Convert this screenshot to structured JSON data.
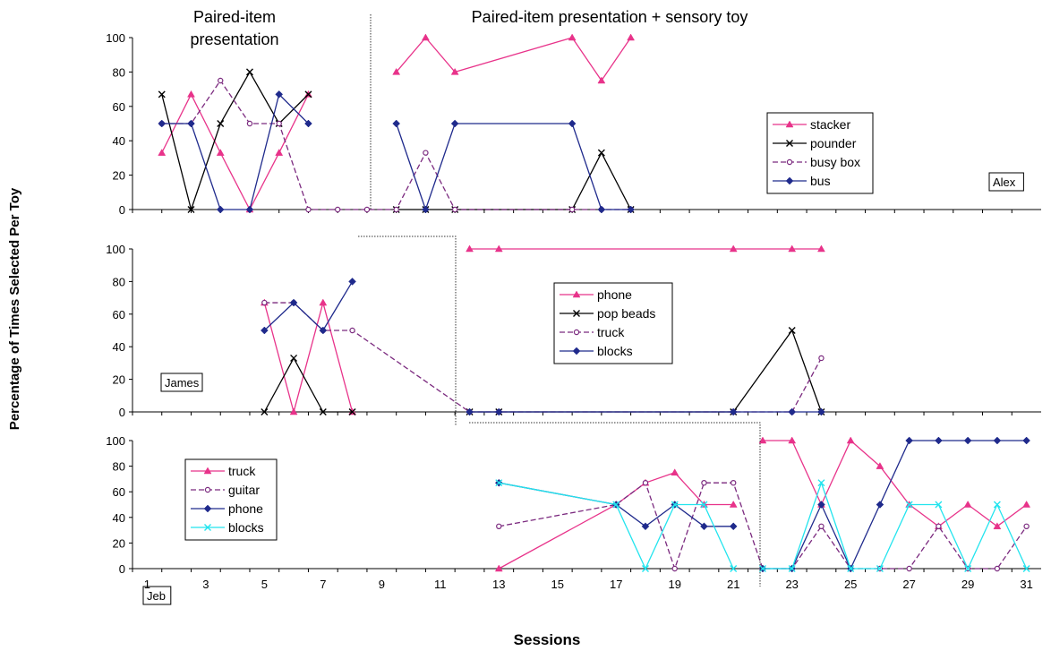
{
  "phase_labels": {
    "baseline": [
      "Paired-item",
      "presentation"
    ],
    "treatment": "Paired-item presentation + sensory toy"
  },
  "chart_data": {
    "type": "line",
    "xlabel": "Sessions",
    "ylabel": "Percentage of Times Selected Per Toy",
    "x_ticks": [
      1,
      3,
      5,
      7,
      9,
      11,
      13,
      15,
      17,
      19,
      21,
      23,
      25,
      27,
      29,
      31
    ],
    "xlim": [
      0.5,
      31.5
    ],
    "ylim": [
      0,
      100
    ],
    "y_ticks": [
      0,
      20,
      40,
      60,
      80,
      100
    ],
    "colors": {
      "pink": "#e8338a",
      "black": "#000000",
      "purple": "#7b2a7f",
      "navy": "#1f2a8c",
      "cyan": "#22e4ee"
    },
    "panels": [
      {
        "participant": "Alex",
        "phase_change_after": 8.5,
        "series": [
          {
            "name": "stacker",
            "color": "#e8338a",
            "marker": "triangle",
            "dash": false,
            "segments": [
              [
                [
                  1.5,
                  33
                ],
                [
                  2.5,
                  67
                ],
                [
                  3.5,
                  33
                ],
                [
                  4.5,
                  0
                ],
                [
                  5.5,
                  33
                ],
                [
                  6.5,
                  67
                ]
              ],
              [
                [
                  9.5,
                  80
                ],
                [
                  10.5,
                  100
                ],
                [
                  11.5,
                  80
                ],
                [
                  15.5,
                  100
                ],
                [
                  16.5,
                  75
                ],
                [
                  17.5,
                  100
                ]
              ]
            ]
          },
          {
            "name": "pounder",
            "color": "#000000",
            "marker": "x",
            "dash": false,
            "segments": [
              [
                [
                  1.5,
                  67
                ],
                [
                  2.5,
                  0
                ],
                [
                  3.5,
                  50
                ],
                [
                  4.5,
                  80
                ],
                [
                  5.5,
                  50
                ],
                [
                  6.5,
                  67
                ]
              ],
              [
                [
                  9.5,
                  0
                ],
                [
                  10.5,
                  0
                ],
                [
                  11.5,
                  0
                ],
                [
                  15.5,
                  0
                ],
                [
                  16.5,
                  33
                ],
                [
                  17.5,
                  0
                ]
              ]
            ]
          },
          {
            "name": "busy box",
            "color": "#7b2a7f",
            "marker": "circle",
            "dash": true,
            "segments": [
              [
                [
                  1.5,
                  50
                ],
                [
                  2.5,
                  50
                ],
                [
                  3.5,
                  75
                ],
                [
                  4.5,
                  50
                ],
                [
                  5.5,
                  50
                ],
                [
                  6.5,
                  0
                ],
                [
                  7.5,
                  0
                ],
                [
                  8.5,
                  0
                ],
                [
                  9.5,
                  0
                ],
                [
                  10.5,
                  33
                ],
                [
                  11.5,
                  0
                ],
                [
                  15.5,
                  0
                ],
                [
                  16.5,
                  0
                ],
                [
                  17.5,
                  0
                ]
              ]
            ]
          },
          {
            "name": "bus",
            "color": "#1f2a8c",
            "marker": "diamond",
            "dash": false,
            "segments": [
              [
                [
                  1.5,
                  50
                ],
                [
                  2.5,
                  50
                ],
                [
                  3.5,
                  0
                ],
                [
                  4.5,
                  0
                ],
                [
                  5.5,
                  67
                ],
                [
                  6.5,
                  50
                ]
              ],
              [
                [
                  9.5,
                  50
                ],
                [
                  10.5,
                  0
                ],
                [
                  11.5,
                  50
                ],
                [
                  15.5,
                  50
                ],
                [
                  16.5,
                  0
                ],
                [
                  17.5,
                  0
                ]
              ]
            ]
          }
        ]
      },
      {
        "participant": "James",
        "phase_change_after": 11.5,
        "series": [
          {
            "name": "phone",
            "color": "#e8338a",
            "marker": "triangle",
            "dash": false,
            "segments": [
              [
                [
                  5,
                  67
                ],
                [
                  6,
                  0
                ],
                [
                  7,
                  67
                ],
                [
                  8,
                  0
                ]
              ],
              [
                [
                  12,
                  100
                ],
                [
                  13,
                  100
                ],
                [
                  21,
                  100
                ],
                [
                  23,
                  100
                ],
                [
                  24,
                  100
                ]
              ]
            ]
          },
          {
            "name": "pop beads",
            "color": "#000000",
            "marker": "x",
            "dash": false,
            "segments": [
              [
                [
                  5,
                  0
                ],
                [
                  6,
                  33
                ],
                [
                  7,
                  0
                ],
                [
                  8,
                  0
                ]
              ],
              [
                [
                  12,
                  0
                ],
                [
                  13,
                  0
                ],
                [
                  21,
                  0
                ],
                [
                  23,
                  50
                ],
                [
                  24,
                  0
                ]
              ]
            ]
          },
          {
            "name": "truck",
            "color": "#7b2a7f",
            "marker": "circle",
            "dash": true,
            "segments": [
              [
                [
                  5,
                  67
                ],
                [
                  6,
                  67
                ],
                [
                  7,
                  50
                ],
                [
                  8,
                  50
                ],
                [
                  12,
                  0
                ],
                [
                  13,
                  0
                ],
                [
                  21,
                  0
                ],
                [
                  23,
                  0
                ],
                [
                  24,
                  33
                ]
              ]
            ]
          },
          {
            "name": "blocks",
            "color": "#1f2a8c",
            "marker": "diamond",
            "dash": false,
            "segments": [
              [
                [
                  5,
                  50
                ],
                [
                  6,
                  67
                ],
                [
                  7,
                  50
                ],
                [
                  8,
                  80
                ]
              ],
              [
                [
                  12,
                  0
                ],
                [
                  13,
                  0
                ],
                [
                  21,
                  0
                ],
                [
                  23,
                  0
                ],
                [
                  24,
                  0
                ]
              ]
            ]
          }
        ]
      },
      {
        "participant": "Jeb",
        "phase_change_after": 21.5,
        "series": [
          {
            "name": "truck",
            "color": "#e8338a",
            "marker": "triangle",
            "dash": false,
            "segments": [
              [
                [
                  13,
                  0
                ],
                [
                  17,
                  50
                ],
                [
                  18,
                  67
                ],
                [
                  19,
                  75
                ],
                [
                  20,
                  50
                ],
                [
                  21,
                  50
                ]
              ],
              [
                [
                  22,
                  100
                ],
                [
                  23,
                  100
                ],
                [
                  24,
                  50
                ],
                [
                  25,
                  100
                ],
                [
                  26,
                  80
                ],
                [
                  27,
                  50
                ],
                [
                  28,
                  33
                ],
                [
                  29,
                  50
                ],
                [
                  30,
                  33
                ],
                [
                  31,
                  50
                ]
              ]
            ]
          },
          {
            "name": "guitar",
            "color": "#7b2a7f",
            "marker": "circle",
            "dash": true,
            "segments": [
              [
                [
                  13,
                  33
                ],
                [
                  17,
                  50
                ],
                [
                  18,
                  67
                ],
                [
                  19,
                  0
                ],
                [
                  20,
                  67
                ],
                [
                  21,
                  67
                ],
                [
                  22,
                  0
                ],
                [
                  23,
                  0
                ],
                [
                  24,
                  33
                ],
                [
                  25,
                  0
                ],
                [
                  26,
                  0
                ],
                [
                  27,
                  0
                ],
                [
                  28,
                  33
                ],
                [
                  29,
                  0
                ],
                [
                  30,
                  0
                ],
                [
                  31,
                  33
                ]
              ]
            ]
          },
          {
            "name": "phone",
            "color": "#1f2a8c",
            "marker": "diamond",
            "dash": false,
            "segments": [
              [
                [
                  13,
                  67
                ],
                [
                  17,
                  50
                ],
                [
                  18,
                  33
                ],
                [
                  19,
                  50
                ],
                [
                  20,
                  33
                ],
                [
                  21,
                  33
                ]
              ],
              [
                [
                  22,
                  0
                ],
                [
                  23,
                  0
                ],
                [
                  24,
                  50
                ],
                [
                  25,
                  0
                ],
                [
                  26,
                  50
                ],
                [
                  27,
                  100
                ],
                [
                  28,
                  100
                ],
                [
                  29,
                  100
                ],
                [
                  30,
                  100
                ],
                [
                  31,
                  100
                ]
              ]
            ]
          },
          {
            "name": "blocks",
            "color": "#22e4ee",
            "marker": "x",
            "dash": false,
            "segments": [
              [
                [
                  13,
                  67
                ],
                [
                  17,
                  50
                ],
                [
                  18,
                  0
                ],
                [
                  19,
                  50
                ],
                [
                  20,
                  50
                ],
                [
                  21,
                  0
                ]
              ],
              [
                [
                  22,
                  0
                ],
                [
                  23,
                  0
                ],
                [
                  24,
                  67
                ],
                [
                  25,
                  0
                ],
                [
                  26,
                  0
                ],
                [
                  27,
                  50
                ],
                [
                  28,
                  50
                ],
                [
                  29,
                  0
                ],
                [
                  30,
                  50
                ],
                [
                  31,
                  0
                ]
              ]
            ]
          }
        ]
      }
    ]
  }
}
